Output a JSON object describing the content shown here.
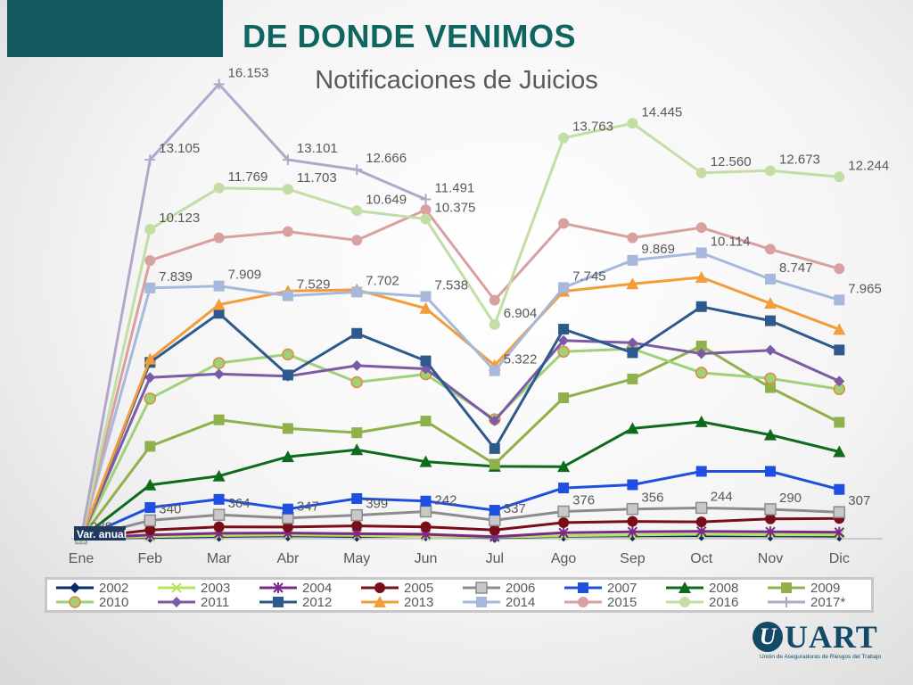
{
  "header": {
    "title": "DE DONDE VENIMOS",
    "accent_color": "#135a5e",
    "title_color": "#0f6660"
  },
  "logo": {
    "mark": "U",
    "word": "UART",
    "tagline": "Unión de Aseguradoras de Riesgos del Trabajo",
    "color": "#134a68"
  },
  "chart_data": {
    "type": "line",
    "title": "Notificaciones de Juicios",
    "xlabel": "",
    "ylabel": "",
    "ylim": [
      0,
      17500
    ],
    "grid": false,
    "legend_position": "bottom",
    "categories": [
      "Ene",
      "Feb",
      "Mar",
      "Abr",
      "May",
      "Jun",
      "Jul",
      "Ago",
      "Sep",
      "Oct",
      "Nov",
      "Dic"
    ],
    "extra_label": "Var. anual",
    "series": [
      {
        "name": "2002",
        "color": "#0a2a6b",
        "marker": "diamond",
        "values": [
          20,
          50,
          90,
          110,
          90,
          110,
          40,
          100,
          110,
          120,
          110,
          100
        ]
      },
      {
        "name": "2003",
        "color": "#b5e35a",
        "marker": "x",
        "values": [
          20,
          80,
          130,
          150,
          130,
          100,
          60,
          120,
          150,
          180,
          160,
          150
        ]
      },
      {
        "name": "2004",
        "color": "#7b2a8a",
        "marker": "star",
        "values": [
          20,
          150,
          220,
          230,
          200,
          180,
          80,
          240,
          280,
          300,
          280,
          260
        ]
      },
      {
        "name": "2005",
        "color": "#7a0e18",
        "marker": "circle",
        "values": [
          20,
          350,
          480,
          470,
          520,
          480,
          350,
          650,
          700,
          680,
          800,
          820
        ]
      },
      {
        "name": "2006",
        "color": "#8c8c8c",
        "marker": "square-outline",
        "values": [
          20,
          740,
          964,
          840,
          950,
          1100,
          750,
          1100,
          1200,
          1244,
          1190,
          1074
        ]
      },
      {
        "name": "2007",
        "color": "#1f4fe0",
        "marker": "square",
        "values": [
          20,
          1260,
          1590,
          1200,
          1620,
          1520,
          1150,
          2050,
          2180,
          2720,
          2720,
          1990
        ]
      },
      {
        "name": "2008",
        "color": "#0e6b1e",
        "marker": "triangle",
        "values": [
          20,
          2170,
          2530,
          3310,
          3590,
          3110,
          2920,
          2910,
          4450,
          4720,
          4190,
          3510
        ]
      },
      {
        "name": "2009",
        "color": "#8fb04a",
        "marker": "square",
        "values": [
          20,
          3730,
          4800,
          4450,
          4280,
          4750,
          3010,
          5690,
          6450,
          7780,
          6100,
          4700
        ]
      },
      {
        "name": "2010",
        "color": "#9fd07a",
        "marker": "circle-ring",
        "values": [
          20,
          5660,
          7090,
          7440,
          6320,
          6640,
          4820,
          7550,
          7670,
          6700,
          6470,
          6040
        ]
      },
      {
        "name": "2011",
        "color": "#7b5aa6",
        "marker": "diamond",
        "values": [
          20,
          6510,
          6650,
          6560,
          6990,
          6860,
          4760,
          8000,
          7910,
          7470,
          7610,
          6360
        ]
      },
      {
        "name": "2012",
        "color": "#2c5a8c",
        "marker": "square",
        "values": [
          20,
          7120,
          9100,
          6610,
          8290,
          7180,
          3640,
          8460,
          7510,
          9370,
          8800,
          7620
        ]
      },
      {
        "name": "2013",
        "color": "#f39c3a",
        "marker": "triangle",
        "values": [
          20,
          7250,
          9450,
          10000,
          10050,
          9300,
          7000,
          9990,
          10290,
          10550,
          9500,
          8450
        ]
      },
      {
        "name": "2014",
        "color": "#a6b9dc",
        "marker": "square",
        "values": [
          20,
          10123,
          10200,
          9810,
          9960,
          9780,
          6780,
          10140,
          11240,
          11540,
          10480,
          9640
        ]
      },
      {
        "name": "2015",
        "color": "#d9a0a0",
        "marker": "circle",
        "values": [
          20,
          11230,
          12150,
          12400,
          12050,
          13280,
          9630,
          12730,
          12150,
          12560,
          11690,
          10900
        ]
      },
      {
        "name": "2016",
        "color": "#c2dea4",
        "marker": "circle",
        "values": [
          20,
          12490,
          14160,
          14110,
          13240,
          12910,
          8650,
          16180,
          16770,
          14770,
          14860,
          14610
        ]
      },
      {
        "name": "2017*",
        "color": "#b4a6c9",
        "marker": "plus",
        "values": [
          20,
          15300,
          18350,
          15300,
          14900,
          13700,
          null,
          null,
          null,
          null,
          null,
          null
        ]
      }
    ],
    "data_labels": [
      {
        "series": "2014",
        "index": 1,
        "text": "7.839"
      },
      {
        "series": "2014",
        "index": 2,
        "text": "7.909"
      },
      {
        "series": "2014",
        "index": 3,
        "text": "7.529"
      },
      {
        "series": "2014",
        "index": 4,
        "text": "7.702"
      },
      {
        "series": "2014",
        "index": 5,
        "text": "7.538"
      },
      {
        "series": "2014",
        "index": 6,
        "text": "5.322"
      },
      {
        "series": "2014",
        "index": 7,
        "text": "7.745"
      },
      {
        "series": "2014",
        "index": 8,
        "text": "9.869"
      },
      {
        "series": "2014",
        "index": 9,
        "text": "10.114"
      },
      {
        "series": "2014",
        "index": 10,
        "text": "8.747"
      },
      {
        "series": "2014",
        "index": 11,
        "text": "7.965"
      },
      {
        "series": "2016",
        "index": 1,
        "text": "10.123"
      },
      {
        "series": "2016",
        "index": 2,
        "text": "11.769"
      },
      {
        "series": "2016",
        "index": 3,
        "text": "11.703"
      },
      {
        "series": "2016",
        "index": 4,
        "text": "10.649"
      },
      {
        "series": "2016",
        "index": 5,
        "text": "10.375"
      },
      {
        "series": "2016",
        "index": 6,
        "text": "6.904"
      },
      {
        "series": "2016",
        "index": 7,
        "text": "13.763"
      },
      {
        "series": "2016",
        "index": 8,
        "text": "14.445"
      },
      {
        "series": "2016",
        "index": 9,
        "text": "12.560"
      },
      {
        "series": "2016",
        "index": 10,
        "text": "12.673"
      },
      {
        "series": "2016",
        "index": 11,
        "text": "12.244"
      },
      {
        "series": "2017*",
        "index": 1,
        "text": "13.105"
      },
      {
        "series": "2017*",
        "index": 2,
        "text": "16.153"
      },
      {
        "series": "2017*",
        "index": 3,
        "text": "13.101"
      },
      {
        "series": "2017*",
        "index": 4,
        "text": "12.666"
      },
      {
        "series": "2017*",
        "index": 5,
        "text": "11.491"
      },
      {
        "series": "2006",
        "index": 0,
        "text": "288"
      },
      {
        "series": "2006",
        "index": 1,
        "text": "340"
      },
      {
        "series": "2006",
        "index": 2,
        "text": "364"
      },
      {
        "series": "2006",
        "index": 3,
        "text": "347"
      },
      {
        "series": "2006",
        "index": 4,
        "text": "399"
      },
      {
        "series": "2006",
        "index": 5,
        "text": "242"
      },
      {
        "series": "2006",
        "index": 6,
        "text": "337"
      },
      {
        "series": "2006",
        "index": 7,
        "text": "376"
      },
      {
        "series": "2006",
        "index": 8,
        "text": "356"
      },
      {
        "series": "2006",
        "index": 9,
        "text": "244"
      },
      {
        "series": "2006",
        "index": 10,
        "text": "290"
      },
      {
        "series": "2006",
        "index": 11,
        "text": "307"
      }
    ]
  }
}
